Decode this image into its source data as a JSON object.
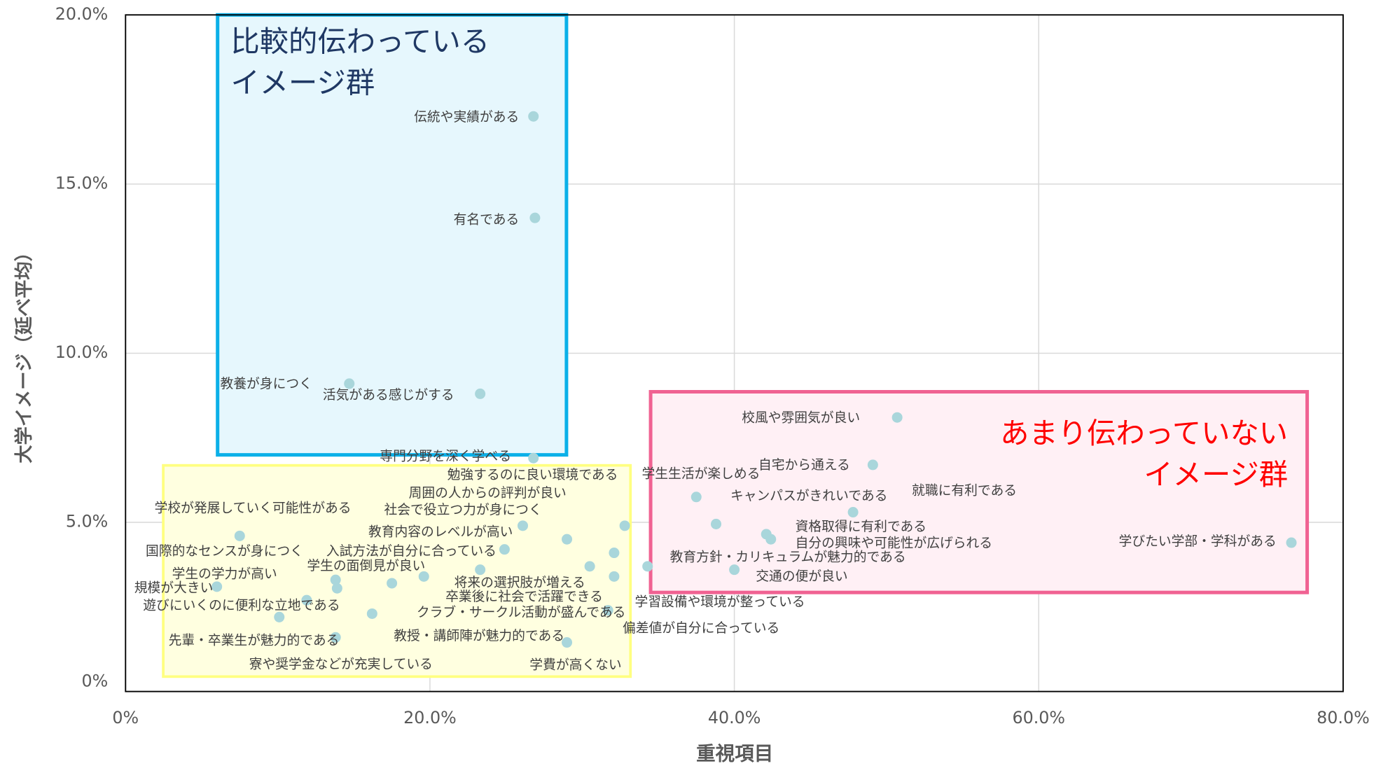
{
  "chart_data": {
    "type": "scatter",
    "x_label": "重視項目",
    "y_label": "大学イメージ（延べ平均）",
    "xlim": [
      0,
      80
    ],
    "ylim": [
      0,
      20
    ],
    "xticks": [
      {
        "value": 0,
        "label": "0%"
      },
      {
        "value": 20,
        "label": "20.0%"
      },
      {
        "value": 40,
        "label": "40.0%"
      },
      {
        "value": 60,
        "label": "60.0%"
      },
      {
        "value": 80,
        "label": "80.0%"
      }
    ],
    "yticks": [
      {
        "value": 0,
        "label": "0%"
      },
      {
        "value": 5,
        "label": "5.0%"
      },
      {
        "value": 10,
        "label": "10.0%"
      },
      {
        "value": 15,
        "label": "15.0%"
      },
      {
        "value": 20,
        "label": "20.0%"
      }
    ],
    "grid": true,
    "color": "#a9d6db",
    "annotations": [
      {
        "lines": [
          "比較的伝わっている",
          "イメージ群"
        ],
        "color": "#1f3864"
      },
      {
        "lines": [
          "あまり伝わっていない",
          "イメージ群"
        ],
        "color": "#ff0000"
      }
    ],
    "points": [
      {
        "label": "伝統や実績がある",
        "x": 26.8,
        "y": 17.0
      },
      {
        "label": "有名である",
        "x": 26.9,
        "y": 14.0
      },
      {
        "label": "教養が身につく",
        "x": 14.7,
        "y": 9.1
      },
      {
        "label": "活気がある感じがする",
        "x": 23.3,
        "y": 8.8
      },
      {
        "label": "専門分野を深く学べる",
        "x": 26.8,
        "y": 6.9
      },
      {
        "label": "勉強するのに良い環境である",
        "x": 32.8,
        "y": 4.9
      },
      {
        "label": "学生生活が楽しめる",
        "x": 37.5,
        "y": 5.75
      },
      {
        "label": "周囲の人からの評判が良い",
        "x": 29.0,
        "y": 4.5
      },
      {
        "label": "社会で役立つ力が身につく",
        "x": 26.1,
        "y": 4.9
      },
      {
        "label": "学校が発展していく可能性がある",
        "x": 7.5,
        "y": 4.6
      },
      {
        "label": "教育内容のレベルが高い",
        "x": 24.9,
        "y": 4.2
      },
      {
        "label": "国際的なセンスが身につく",
        "x": 13.8,
        "y": 3.3
      },
      {
        "label": "入試方法が自分に合っている",
        "x": 23.3,
        "y": 3.6
      },
      {
        "label": "学生の面倒見が良い",
        "x": 19.6,
        "y": 3.4
      },
      {
        "label": "学生の学力が高い",
        "x": 13.9,
        "y": 3.05
      },
      {
        "label": "規模が大きい",
        "x": 6.0,
        "y": 3.1
      },
      {
        "label": "遊びにいくのに便利な立地である",
        "x": 11.9,
        "y": 2.7
      },
      {
        "label": "先輩・卒業生が魅力的である",
        "x": 13.8,
        "y": 1.6
      },
      {
        "label": "クラブ・サークル活動が盛んである",
        "x": 17.5,
        "y": 3.2
      },
      {
        "label": "教授・講師陣が魅力的である",
        "x": 16.2,
        "y": 2.3
      },
      {
        "label": "将来の選択肢が増える",
        "x": 32.1,
        "y": 4.1
      },
      {
        "label": "卒業後に社会で活躍できる",
        "x": 30.5,
        "y": 3.7
      },
      {
        "label": "学習設備や環境が整っている",
        "x": 32.1,
        "y": 3.4
      },
      {
        "label": "偏差値が自分に合っている",
        "x": 31.7,
        "y": 2.4
      },
      {
        "label": "学費が高くない",
        "x": 29.0,
        "y": 1.45
      },
      {
        "label": "教育方針・カリキュラムが魅力的である",
        "x": 34.3,
        "y": 3.7
      },
      {
        "label": "キャンパスがきれいである",
        "x": 38.8,
        "y": 4.95
      },
      {
        "label": "交通の便が良い",
        "x": 40.0,
        "y": 3.6
      },
      {
        "label": "校風や雰囲気が良い",
        "x": 50.7,
        "y": 8.1
      },
      {
        "label": "自宅から通える",
        "x": 49.1,
        "y": 6.7
      },
      {
        "label": "就職に有利である",
        "x": 47.8,
        "y": 5.3
      },
      {
        "label": "資格取得に有利である",
        "x": 42.1,
        "y": 4.65
      },
      {
        "label": "自分の興味や可能性が広げられる",
        "x": 42.4,
        "y": 4.5
      },
      {
        "label": "学びたい学部・学科がある",
        "x": 76.6,
        "y": 4.4
      },
      {
        "label": "寮や奨学金などが充実している",
        "x": 10.1,
        "y": 2.2
      }
    ]
  }
}
